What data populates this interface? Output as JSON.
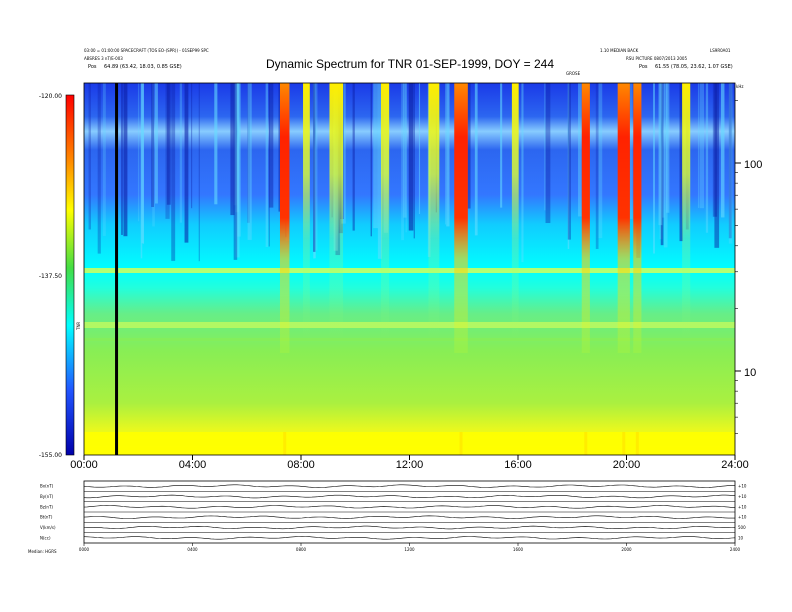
{
  "header": {
    "left_line1": "03:00 = 01:00:00 SPACECRAFT (TOS EO-(SPR)) - 01SEP99 SPC",
    "left_line2": "ABSRES 3 nT/E-003",
    "left_pos_label": "Pos",
    "left_pos_value": "64.89 (63.42, 18.03, 0.85 GSE)",
    "right_line1": "1.10 MEDIAN BACK",
    "right_line1b": "LS9R0A01",
    "right_line2": "RSU PICTURE 0807/2013 2005",
    "right_pos_label": "Pos",
    "right_pos_value": "61.55 (78.05, 23.62, 1.07 GSE)",
    "right_units_small": "GROSE",
    "right_khz": "kHz"
  },
  "chart_data": {
    "type": "heatmap",
    "title": "Dynamic Spectrum for TNR 01-SEP-1999, DOY = 244",
    "x_tick_labels": [
      "00:00",
      "04:00",
      "08:00",
      "12:00",
      "16:00",
      "20:00",
      "24:00"
    ],
    "x_range_hours": [
      0,
      24
    ],
    "y_tick_labels": [
      "100",
      "10"
    ],
    "y_scale": "log",
    "colorbar": {
      "ticks": [
        "-120.00",
        "-137.50",
        "-155.00"
      ],
      "range": [
        -155,
        -120
      ],
      "label": "TNR"
    },
    "marker_line_hour": 1.2,
    "bursts": [
      {
        "center_hour": 7.4,
        "width": 0.35
      },
      {
        "center_hour": 13.9,
        "width": 0.5
      },
      {
        "center_hour": 18.5,
        "width": 0.3
      },
      {
        "center_hour": 19.9,
        "width": 0.45
      },
      {
        "center_hour": 20.4,
        "width": 0.3
      }
    ],
    "weak_features": [
      {
        "center_hour": 8.2,
        "width": 0.25
      },
      {
        "center_hour": 9.3,
        "width": 0.5
      },
      {
        "center_hour": 11.1,
        "width": 0.3
      },
      {
        "center_hour": 12.9,
        "width": 0.4
      },
      {
        "center_hour": 15.9,
        "width": 0.25
      },
      {
        "center_hour": 22.2,
        "width": 0.3
      }
    ]
  },
  "bottom_panel": {
    "row_labels": [
      "Bx(nT)",
      "By(nT)",
      "Bz(nT)",
      "Bt(nT)",
      "V(km/s)",
      "N(cc)"
    ],
    "right_labels": [
      "+10",
      "+10",
      "+10",
      "+10",
      "500",
      "10"
    ],
    "x_tick_labels": [
      "0000",
      "0400",
      "0800",
      "1200",
      "1600",
      "2000",
      "2400"
    ],
    "footer": "Median: HGRS"
  }
}
